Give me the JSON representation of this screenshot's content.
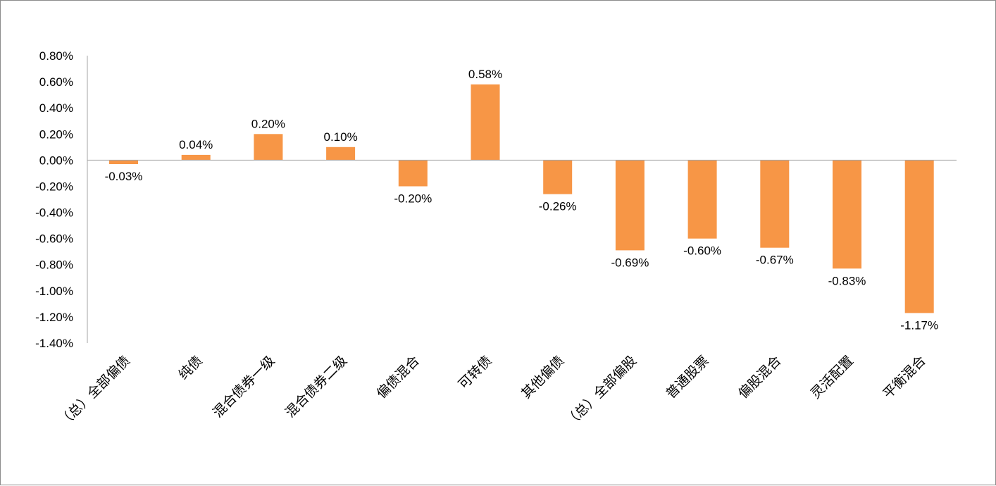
{
  "chart_data": {
    "type": "bar",
    "title": "",
    "xlabel": "",
    "ylabel": "",
    "ylim": [
      -1.4,
      0.8
    ],
    "y_tick_step": 0.2,
    "y_unit": "%",
    "grid": false,
    "legend": "none",
    "bar_color": "#F79646",
    "categories": [
      "（总）全部偏债",
      "纯债",
      "混合债券一级",
      "混合债券二级",
      "偏债混合",
      "可转债",
      "其他偏债",
      "（总）全部偏股",
      "普通股票",
      "偏股混合",
      "灵活配置",
      "平衡混合"
    ],
    "values": [
      -0.03,
      0.04,
      0.2,
      0.1,
      -0.2,
      0.58,
      -0.26,
      -0.69,
      -0.6,
      -0.67,
      -0.83,
      -1.17
    ],
    "data_labels": [
      "-0.03%",
      "0.04%",
      "0.20%",
      "0.10%",
      "-0.20%",
      "0.58%",
      "-0.26%",
      "-0.69%",
      "-0.60%",
      "-0.67%",
      "-0.83%",
      "-1.17%"
    ],
    "y_tick_labels": [
      "0.80%",
      "0.60%",
      "0.40%",
      "0.20%",
      "0.00%",
      "-0.20%",
      "-0.40%",
      "-0.60%",
      "-0.80%",
      "-1.00%",
      "-1.20%",
      "-1.40%"
    ]
  }
}
